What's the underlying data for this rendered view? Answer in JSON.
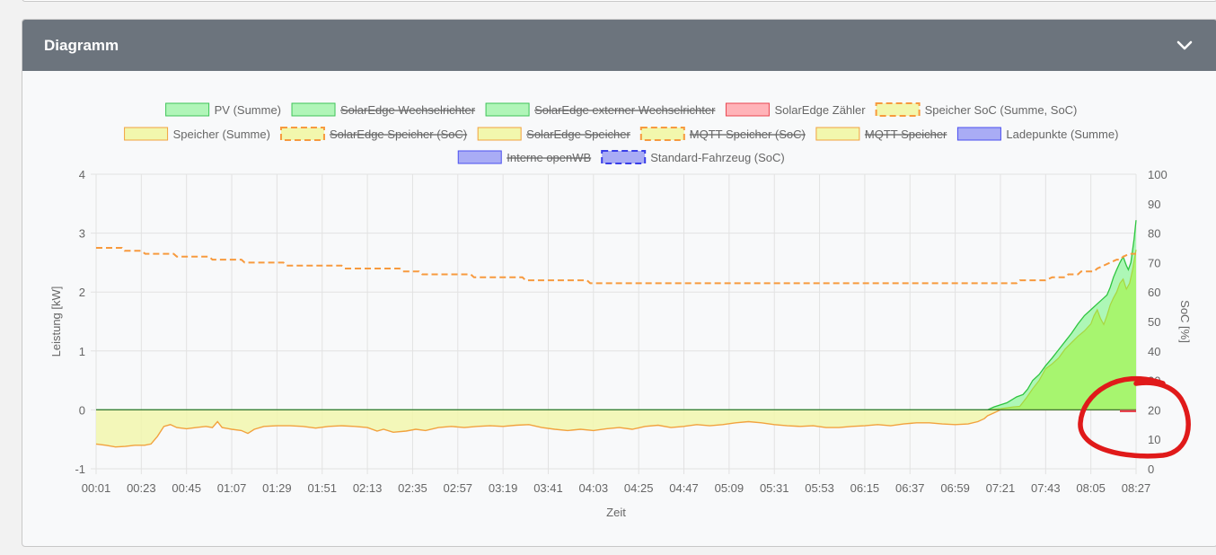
{
  "panel": {
    "title": "Diagramm",
    "collapse_icon": "chevron-down-icon"
  },
  "chart_data": {
    "type": "area",
    "xlabel": "Zeit",
    "ylabel_left": "Leistung [kW]",
    "ylabel_right": "SoC [%]",
    "ylim_left": [
      -1,
      4
    ],
    "ylim_right": [
      0,
      100
    ],
    "x_tick_labels": [
      "00:01",
      "00:23",
      "00:45",
      "01:07",
      "01:29",
      "01:51",
      "02:13",
      "02:35",
      "02:57",
      "03:19",
      "03:41",
      "04:03",
      "04:25",
      "04:47",
      "05:09",
      "05:31",
      "05:53",
      "06:15",
      "06:37",
      "06:59",
      "07:21",
      "07:43",
      "08:05",
      "08:27"
    ],
    "y_left_ticks": [
      -1,
      0,
      1,
      2,
      3,
      4
    ],
    "y_right_ticks": [
      0,
      10,
      20,
      30,
      40,
      50,
      60,
      70,
      80,
      90,
      100
    ],
    "grid": true,
    "legend_position": "top",
    "legend": [
      {
        "label": "PV (Summe)",
        "hidden": false,
        "fill": "#b0f5b8",
        "border": "#3ec458",
        "dashed": false
      },
      {
        "label": "SolarEdge Wechselrichter",
        "hidden": true,
        "fill": "#b0f5b8",
        "border": "#3ec458",
        "dashed": false
      },
      {
        "label": "SolarEdge externer Wechselrichter",
        "hidden": true,
        "fill": "#b0f5b8",
        "border": "#3ec458",
        "dashed": false
      },
      {
        "label": "SolarEdge Zähler",
        "hidden": false,
        "fill": "#ffb3b8",
        "border": "#e8454f",
        "dashed": false
      },
      {
        "label": "Speicher SoC (Summe, SoC)",
        "hidden": false,
        "fill": "#f2f7ad",
        "border": "#f79a3e",
        "dashed": true
      },
      {
        "label": "Speicher (Summe)",
        "hidden": false,
        "fill": "#f2f7ad",
        "border": "#f2a23e",
        "dashed": false
      },
      {
        "label": "SolarEdge Speicher (SoC)",
        "hidden": true,
        "fill": "#f2f7ad",
        "border": "#f79a3e",
        "dashed": true
      },
      {
        "label": "SolarEdge Speicher",
        "hidden": true,
        "fill": "#f2f7ad",
        "border": "#f2a23e",
        "dashed": false
      },
      {
        "label": "MQTT Speicher (SoC)",
        "hidden": true,
        "fill": "#f2f7ad",
        "border": "#f79a3e",
        "dashed": true
      },
      {
        "label": "MQTT Speicher",
        "hidden": true,
        "fill": "#f2f7ad",
        "border": "#f2a23e",
        "dashed": false
      },
      {
        "label": "Ladepunkte (Summe)",
        "hidden": false,
        "fill": "#a9acf5",
        "border": "#4a4ff0",
        "dashed": false
      },
      {
        "label": "Interne openWB",
        "hidden": true,
        "fill": "#a9acf5",
        "border": "#4a4ff0",
        "dashed": false
      },
      {
        "label": "Standard-Fahrzeug (SoC)",
        "hidden": false,
        "fill": "#a9acf5",
        "border": "#3a3fe8",
        "dashed": true
      }
    ],
    "series": [
      {
        "name": "PV (Summe)",
        "unit": "kW",
        "color": "#2ec43f",
        "fill": "#adf7b6",
        "points": [
          [
            0,
            0
          ],
          [
            1200,
            0
          ],
          [
            1380,
            0
          ],
          [
            1390,
            0.05
          ],
          [
            1410,
            0.12
          ],
          [
            1425,
            0.22
          ],
          [
            1435,
            0.26
          ],
          [
            1442,
            0.35
          ],
          [
            1450,
            0.5
          ],
          [
            1460,
            0.6
          ],
          [
            1470,
            0.75
          ],
          [
            1480,
            0.88
          ],
          [
            1490,
            1.02
          ],
          [
            1500,
            1.16
          ],
          [
            1510,
            1.3
          ],
          [
            1520,
            1.46
          ],
          [
            1530,
            1.6
          ],
          [
            1540,
            1.7
          ],
          [
            1550,
            1.8
          ],
          [
            1560,
            1.9
          ],
          [
            1565,
            1.95
          ],
          [
            1570,
            2.08
          ],
          [
            1575,
            2.25
          ],
          [
            1580,
            2.38
          ],
          [
            1585,
            2.5
          ],
          [
            1590,
            2.6
          ],
          [
            1595,
            2.45
          ],
          [
            1598,
            2.38
          ],
          [
            1602,
            2.5
          ],
          [
            1607,
            2.9
          ],
          [
            1610,
            3.22
          ]
        ]
      },
      {
        "name": "SolarEdge Wechselrichter",
        "unit": "kW",
        "color": "#7ed957",
        "fill": "#a7f56f",
        "points": [
          [
            0,
            0
          ],
          [
            1380,
            0
          ],
          [
            1400,
            0.02
          ],
          [
            1420,
            0.05
          ],
          [
            1430,
            0.06
          ],
          [
            1440,
            0.2
          ],
          [
            1450,
            0.36
          ],
          [
            1460,
            0.5
          ],
          [
            1470,
            0.7
          ],
          [
            1480,
            0.78
          ],
          [
            1490,
            0.88
          ],
          [
            1500,
            1.03
          ],
          [
            1510,
            1.14
          ],
          [
            1520,
            1.25
          ],
          [
            1530,
            1.34
          ],
          [
            1540,
            1.46
          ],
          [
            1545,
            1.6
          ],
          [
            1550,
            1.7
          ],
          [
            1555,
            1.55
          ],
          [
            1560,
            1.45
          ],
          [
            1565,
            1.6
          ],
          [
            1570,
            1.78
          ],
          [
            1575,
            1.9
          ],
          [
            1580,
            2.0
          ],
          [
            1585,
            2.15
          ],
          [
            1590,
            2.22
          ],
          [
            1595,
            2.05
          ],
          [
            1600,
            2.15
          ],
          [
            1605,
            2.4
          ],
          [
            1610,
            2.72
          ]
        ]
      },
      {
        "name": "Speicher (Summe)",
        "unit": "kW",
        "color": "#f2a23e",
        "fill": "#f2f7ad",
        "points": [
          [
            0,
            -0.58
          ],
          [
            15,
            -0.6
          ],
          [
            30,
            -0.63
          ],
          [
            45,
            -0.62
          ],
          [
            60,
            -0.6
          ],
          [
            75,
            -0.6
          ],
          [
            85,
            -0.58
          ],
          [
            95,
            -0.45
          ],
          [
            105,
            -0.28
          ],
          [
            115,
            -0.25
          ],
          [
            125,
            -0.3
          ],
          [
            140,
            -0.32
          ],
          [
            155,
            -0.3
          ],
          [
            170,
            -0.28
          ],
          [
            180,
            -0.3
          ],
          [
            188,
            -0.2
          ],
          [
            195,
            -0.3
          ],
          [
            210,
            -0.33
          ],
          [
            225,
            -0.35
          ],
          [
            235,
            -0.4
          ],
          [
            245,
            -0.33
          ],
          [
            260,
            -0.28
          ],
          [
            280,
            -0.27
          ],
          [
            300,
            -0.27
          ],
          [
            320,
            -0.28
          ],
          [
            340,
            -0.31
          ],
          [
            360,
            -0.28
          ],
          [
            380,
            -0.27
          ],
          [
            400,
            -0.28
          ],
          [
            420,
            -0.3
          ],
          [
            435,
            -0.36
          ],
          [
            445,
            -0.33
          ],
          [
            460,
            -0.38
          ],
          [
            480,
            -0.36
          ],
          [
            495,
            -0.33
          ],
          [
            510,
            -0.35
          ],
          [
            530,
            -0.3
          ],
          [
            550,
            -0.28
          ],
          [
            570,
            -0.3
          ],
          [
            590,
            -0.28
          ],
          [
            610,
            -0.27
          ],
          [
            630,
            -0.28
          ],
          [
            650,
            -0.26
          ],
          [
            670,
            -0.25
          ],
          [
            690,
            -0.3
          ],
          [
            710,
            -0.33
          ],
          [
            730,
            -0.35
          ],
          [
            750,
            -0.33
          ],
          [
            770,
            -0.35
          ],
          [
            790,
            -0.32
          ],
          [
            810,
            -0.3
          ],
          [
            830,
            -0.33
          ],
          [
            850,
            -0.28
          ],
          [
            870,
            -0.26
          ],
          [
            890,
            -0.3
          ],
          [
            910,
            -0.28
          ],
          [
            930,
            -0.25
          ],
          [
            950,
            -0.27
          ],
          [
            970,
            -0.25
          ],
          [
            990,
            -0.22
          ],
          [
            1010,
            -0.2
          ],
          [
            1030,
            -0.22
          ],
          [
            1050,
            -0.25
          ],
          [
            1070,
            -0.27
          ],
          [
            1090,
            -0.28
          ],
          [
            1110,
            -0.27
          ],
          [
            1130,
            -0.3
          ],
          [
            1150,
            -0.3
          ],
          [
            1170,
            -0.28
          ],
          [
            1190,
            -0.27
          ],
          [
            1210,
            -0.25
          ],
          [
            1230,
            -0.27
          ],
          [
            1250,
            -0.24
          ],
          [
            1270,
            -0.22
          ],
          [
            1290,
            -0.22
          ],
          [
            1310,
            -0.24
          ],
          [
            1330,
            -0.25
          ],
          [
            1350,
            -0.24
          ],
          [
            1365,
            -0.2
          ],
          [
            1375,
            -0.15
          ],
          [
            1380,
            -0.1
          ],
          [
            1390,
            -0.05
          ],
          [
            1400,
            0
          ],
          [
            1610,
            0
          ]
        ]
      },
      {
        "name": "Speicher SoC (Summe, SoC)",
        "unit": "%",
        "axis": "right",
        "color": "#f79a3e",
        "dashed": true,
        "points": [
          [
            0,
            75
          ],
          [
            40,
            75
          ],
          [
            44,
            74
          ],
          [
            70,
            74
          ],
          [
            76,
            73
          ],
          [
            120,
            73
          ],
          [
            125,
            72
          ],
          [
            175,
            72
          ],
          [
            180,
            71
          ],
          [
            225,
            71
          ],
          [
            230,
            70
          ],
          [
            290,
            70
          ],
          [
            295,
            69
          ],
          [
            380,
            69
          ],
          [
            385,
            68
          ],
          [
            470,
            68
          ],
          [
            475,
            67
          ],
          [
            500,
            67
          ],
          [
            505,
            66
          ],
          [
            580,
            66
          ],
          [
            585,
            65
          ],
          [
            660,
            65
          ],
          [
            665,
            64
          ],
          [
            760,
            64
          ],
          [
            765,
            63
          ],
          [
            1345,
            63
          ],
          [
            1350,
            63
          ],
          [
            1400,
            63
          ],
          [
            1425,
            63
          ],
          [
            1430,
            64
          ],
          [
            1470,
            64
          ],
          [
            1480,
            65
          ],
          [
            1500,
            65
          ],
          [
            1505,
            66
          ],
          [
            1520,
            66
          ],
          [
            1525,
            67
          ],
          [
            1545,
            67
          ],
          [
            1550,
            68
          ],
          [
            1560,
            69
          ],
          [
            1570,
            70
          ],
          [
            1580,
            71
          ],
          [
            1585,
            71
          ],
          [
            1590,
            72
          ],
          [
            1600,
            73
          ],
          [
            1610,
            73
          ]
        ]
      },
      {
        "name": "SolarEdge Zähler",
        "unit": "kW",
        "color": "#e8454f",
        "points": [
          [
            1585,
            -0.02
          ],
          [
            1610,
            -0.02
          ]
        ]
      }
    ]
  }
}
